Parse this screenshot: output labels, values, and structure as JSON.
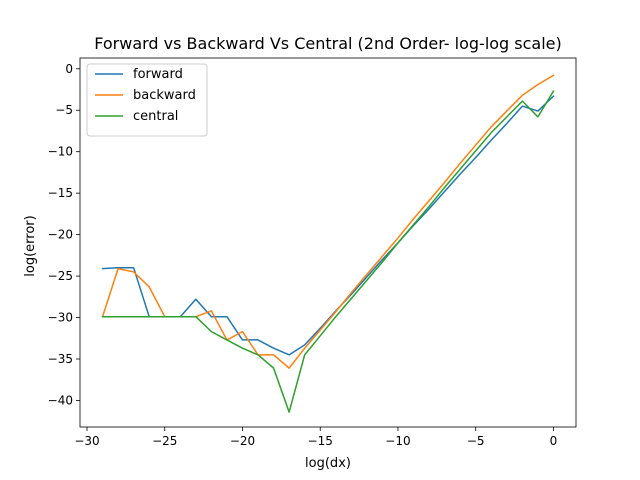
{
  "chart_data": {
    "type": "line",
    "title": "Forward vs Backward Vs Central (2nd Order- log-log scale)",
    "xlabel": "log(dx)",
    "ylabel": "log(error)",
    "xlim": [
      -30.45,
      1.45
    ],
    "ylim": [
      -43.2,
      1.3
    ],
    "xticks": [
      -30,
      -25,
      -20,
      -15,
      -10,
      -5,
      0
    ],
    "xtick_labels": [
      "−30",
      "−25",
      "−20",
      "−15",
      "−10",
      "−5",
      "0"
    ],
    "yticks": [
      0,
      -5,
      -10,
      -15,
      -20,
      -25,
      -30,
      -35,
      -40
    ],
    "ytick_labels": [
      "0",
      "−5",
      "−10",
      "−15",
      "−20",
      "−25",
      "−30",
      "−35",
      "−40"
    ],
    "grid": false,
    "legend_position": "top-left",
    "series": [
      {
        "name": "forward",
        "color": "#1f77b4",
        "x": [
          -29,
          -28,
          -27,
          -26,
          -25,
          -24,
          -23,
          -22,
          -21,
          -20,
          -19,
          -18,
          -17,
          -16,
          -15,
          -14,
          -13,
          -12,
          -11,
          -10,
          -9,
          -8,
          -7,
          -6,
          -5,
          -4,
          -3,
          -2,
          -1,
          0
        ],
        "y": [
          -24.1,
          -24.0,
          -24.0,
          -29.9,
          -29.9,
          -29.9,
          -27.8,
          -29.9,
          -29.9,
          -32.7,
          -32.7,
          -33.7,
          -34.5,
          -33.3,
          -31.3,
          -29.2,
          -27.2,
          -25.1,
          -23.0,
          -21.0,
          -18.9,
          -16.9,
          -14.8,
          -12.7,
          -10.7,
          -8.6,
          -6.6,
          -4.5,
          -5.1,
          -3.3
        ]
      },
      {
        "name": "backward",
        "color": "#ff7f0e",
        "x": [
          -29,
          -28,
          -27,
          -26,
          -25,
          -24,
          -23,
          -22,
          -21,
          -20,
          -19,
          -18,
          -17,
          -16,
          -15,
          -14,
          -13,
          -12,
          -11,
          -10,
          -9,
          -8,
          -7,
          -6,
          -5,
          -4,
          -3,
          -2,
          -1,
          0
        ],
        "y": [
          -29.9,
          -24.1,
          -24.5,
          -26.3,
          -29.9,
          -29.9,
          -29.9,
          -29.2,
          -32.7,
          -31.7,
          -34.5,
          -34.5,
          -36.1,
          -33.7,
          -31.5,
          -29.3,
          -27.0,
          -24.8,
          -22.6,
          -20.4,
          -18.1,
          -15.9,
          -13.7,
          -11.4,
          -9.2,
          -7.0,
          -5.1,
          -3.2,
          -1.9,
          -0.8
        ]
      },
      {
        "name": "central",
        "color": "#2ca02c",
        "x": [
          -29,
          -28,
          -27,
          -26,
          -25,
          -24,
          -23,
          -22,
          -21,
          -20,
          -19,
          -18,
          -17,
          -16,
          -15,
          -14,
          -13,
          -12,
          -11,
          -10,
          -9,
          -8,
          -7,
          -6,
          -5,
          -4,
          -3,
          -2,
          -1,
          0
        ],
        "y": [
          -29.9,
          -29.9,
          -29.9,
          -29.9,
          -29.9,
          -29.9,
          -29.9,
          -31.7,
          -32.7,
          -33.7,
          -34.5,
          -36.1,
          -41.4,
          -34.5,
          -32.2,
          -29.9,
          -27.7,
          -25.5,
          -23.3,
          -21.0,
          -18.8,
          -16.6,
          -14.3,
          -12.1,
          -9.9,
          -7.7,
          -5.8,
          -3.9,
          -5.8,
          -2.7
        ]
      }
    ]
  }
}
